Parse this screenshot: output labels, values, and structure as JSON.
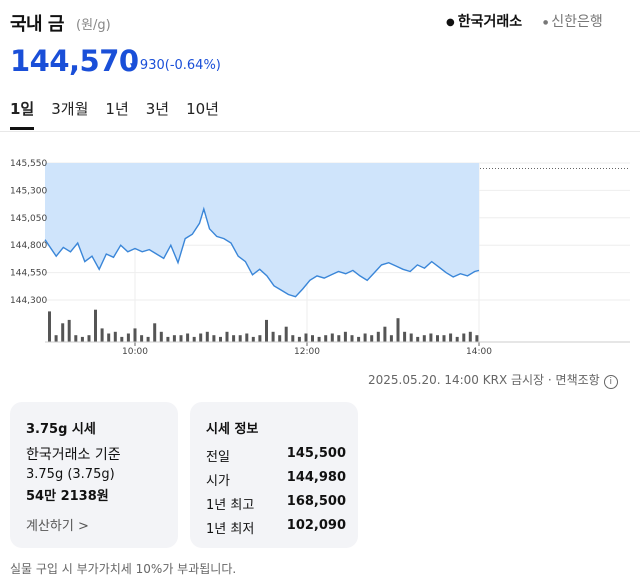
{
  "header": {
    "title": "국내 금",
    "unit": "(원/g)",
    "sources": [
      "한국거래소",
      "신한은행"
    ]
  },
  "quote": {
    "price": "144,570",
    "change": "930",
    "change_pct": "(-0.64%)",
    "down_color": "#1a4fd8"
  },
  "tabs": [
    "1일",
    "3개월",
    "1년",
    "3년",
    "10년"
  ],
  "timestamp": "2025.05.20. 14:00 KRX 금시장 · 면책조항",
  "card_left": {
    "title": "3.75g 시세",
    "line1": "한국거래소 기준",
    "line2": "3.75g (3.75g)",
    "line3": "54만 2138원",
    "link": "계산하기 >"
  },
  "card_right": {
    "title": "시세 정보",
    "rows": [
      {
        "label": "전일",
        "value": "145,500"
      },
      {
        "label": "시가",
        "value": "144,980"
      },
      {
        "label": "1년 최고",
        "value": "168,500"
      },
      {
        "label": "1년 최저",
        "value": "102,090"
      }
    ]
  },
  "footnote": "실물 구입 시 부가가치세 10%가 부과됩니다.",
  "chart_data": {
    "type": "area",
    "x_unit": "time",
    "x_ticks": [
      "10:00",
      "12:00",
      "14:00"
    ],
    "y_ticks": [
      144300,
      144550,
      144800,
      145050,
      145300,
      145550
    ],
    "y_tick_labels": [
      "144,300",
      "144,550",
      "144,800",
      "145,050",
      "145,300",
      "145,550"
    ],
    "ylim": [
      144300,
      145550
    ],
    "prev_close": 145500,
    "line_color": "#3a86d8",
    "fill_color": "#cfe4fb",
    "series": [
      {
        "x": "09:00",
        "y": 144850
      },
      {
        "x": "09:05",
        "y": 144700
      },
      {
        "x": "09:10",
        "y": 144780
      },
      {
        "x": "09:15",
        "y": 144740
      },
      {
        "x": "09:20",
        "y": 144820
      },
      {
        "x": "09:25",
        "y": 144650
      },
      {
        "x": "09:30",
        "y": 144700
      },
      {
        "x": "09:35",
        "y": 144580
      },
      {
        "x": "09:40",
        "y": 144720
      },
      {
        "x": "09:45",
        "y": 144690
      },
      {
        "x": "09:50",
        "y": 144800
      },
      {
        "x": "09:55",
        "y": 144740
      },
      {
        "x": "10:00",
        "y": 144770
      },
      {
        "x": "10:05",
        "y": 144740
      },
      {
        "x": "10:10",
        "y": 144760
      },
      {
        "x": "10:15",
        "y": 144720
      },
      {
        "x": "10:20",
        "y": 144680
      },
      {
        "x": "10:25",
        "y": 144800
      },
      {
        "x": "10:30",
        "y": 144640
      },
      {
        "x": "10:35",
        "y": 144860
      },
      {
        "x": "10:40",
        "y": 144900
      },
      {
        "x": "10:45",
        "y": 145000
      },
      {
        "x": "10:48",
        "y": 145130
      },
      {
        "x": "10:52",
        "y": 144950
      },
      {
        "x": "10:57",
        "y": 144880
      },
      {
        "x": "11:02",
        "y": 144860
      },
      {
        "x": "11:07",
        "y": 144820
      },
      {
        "x": "11:12",
        "y": 144700
      },
      {
        "x": "11:17",
        "y": 144650
      },
      {
        "x": "11:22",
        "y": 144530
      },
      {
        "x": "11:27",
        "y": 144580
      },
      {
        "x": "11:32",
        "y": 144520
      },
      {
        "x": "11:37",
        "y": 144430
      },
      {
        "x": "11:42",
        "y": 144390
      },
      {
        "x": "11:47",
        "y": 144350
      },
      {
        "x": "11:52",
        "y": 144330
      },
      {
        "x": "11:57",
        "y": 144400
      },
      {
        "x": "12:02",
        "y": 144480
      },
      {
        "x": "12:07",
        "y": 144520
      },
      {
        "x": "12:12",
        "y": 144500
      },
      {
        "x": "12:17",
        "y": 144530
      },
      {
        "x": "12:22",
        "y": 144560
      },
      {
        "x": "12:27",
        "y": 144540
      },
      {
        "x": "12:32",
        "y": 144570
      },
      {
        "x": "12:37",
        "y": 144520
      },
      {
        "x": "12:42",
        "y": 144480
      },
      {
        "x": "12:47",
        "y": 144550
      },
      {
        "x": "12:52",
        "y": 144620
      },
      {
        "x": "12:57",
        "y": 144640
      },
      {
        "x": "13:02",
        "y": 144610
      },
      {
        "x": "13:07",
        "y": 144580
      },
      {
        "x": "13:12",
        "y": 144560
      },
      {
        "x": "13:17",
        "y": 144620
      },
      {
        "x": "13:22",
        "y": 144590
      },
      {
        "x": "13:27",
        "y": 144650
      },
      {
        "x": "13:32",
        "y": 144600
      },
      {
        "x": "13:37",
        "y": 144550
      },
      {
        "x": "13:42",
        "y": 144510
      },
      {
        "x": "13:47",
        "y": 144540
      },
      {
        "x": "13:52",
        "y": 144520
      },
      {
        "x": "13:57",
        "y": 144560
      },
      {
        "x": "14:00",
        "y": 144570
      }
    ],
    "volume": [
      0.9,
      0.2,
      0.55,
      0.65,
      0.2,
      0.15,
      0.2,
      0.95,
      0.4,
      0.25,
      0.3,
      0.15,
      0.25,
      0.4,
      0.2,
      0.15,
      0.55,
      0.3,
      0.15,
      0.2,
      0.2,
      0.25,
      0.15,
      0.25,
      0.3,
      0.2,
      0.15,
      0.3,
      0.2,
      0.2,
      0.25,
      0.15,
      0.2,
      0.65,
      0.3,
      0.2,
      0.45,
      0.2,
      0.15,
      0.25,
      0.2,
      0.15,
      0.2,
      0.25,
      0.2,
      0.3,
      0.2,
      0.15,
      0.25,
      0.2,
      0.3,
      0.45,
      0.2,
      0.7,
      0.3,
      0.25,
      0.15,
      0.2,
      0.25,
      0.2,
      0.2,
      0.25,
      0.15,
      0.25,
      0.3,
      0.2
    ]
  }
}
